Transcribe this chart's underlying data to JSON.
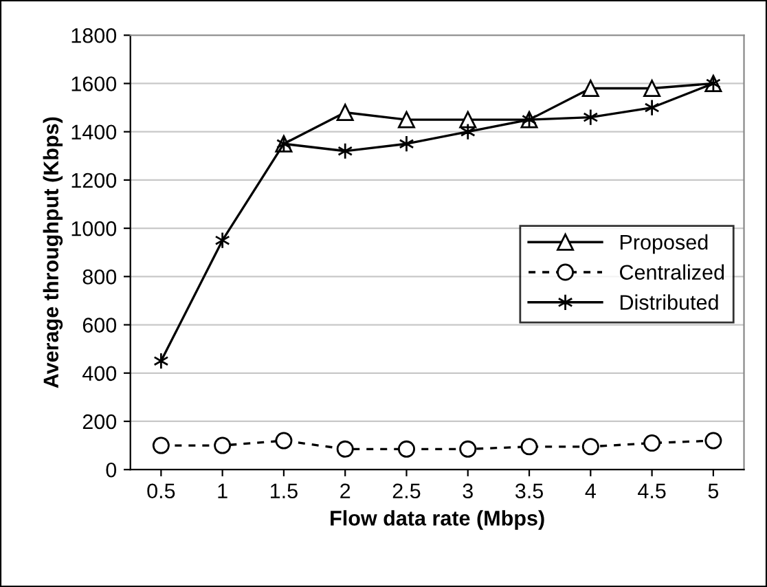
{
  "chart_data": {
    "type": "line",
    "xlabel": "Flow data rate (Mbps)",
    "ylabel": "Average throughput (Kbps)",
    "categories": [
      "0.5",
      "1",
      "1.5",
      "2",
      "2.5",
      "3",
      "3.5",
      "4",
      "4.5",
      "5"
    ],
    "series": [
      {
        "name": "Proposed",
        "color": "#000000",
        "marker": "triangle",
        "line_style": "solid",
        "values": [
          null,
          null,
          1350,
          1480,
          1450,
          1450,
          1450,
          1580,
          1580,
          1600
        ]
      },
      {
        "name": "Centralized",
        "color": "#000000",
        "marker": "circle",
        "line_style": "dashed",
        "values": [
          100,
          100,
          120,
          85,
          85,
          85,
          95,
          95,
          110,
          120
        ]
      },
      {
        "name": "Distributed",
        "color": "#000000",
        "marker": "cross",
        "line_style": "solid",
        "values": [
          450,
          950,
          1350,
          1320,
          1350,
          1400,
          1450,
          1460,
          1500,
          1600
        ]
      }
    ],
    "ylim": [
      0,
      1800
    ],
    "yticks": [
      0,
      200,
      400,
      600,
      800,
      1000,
      1200,
      1400,
      1600,
      1800
    ],
    "grid": "y",
    "legend": "right"
  }
}
